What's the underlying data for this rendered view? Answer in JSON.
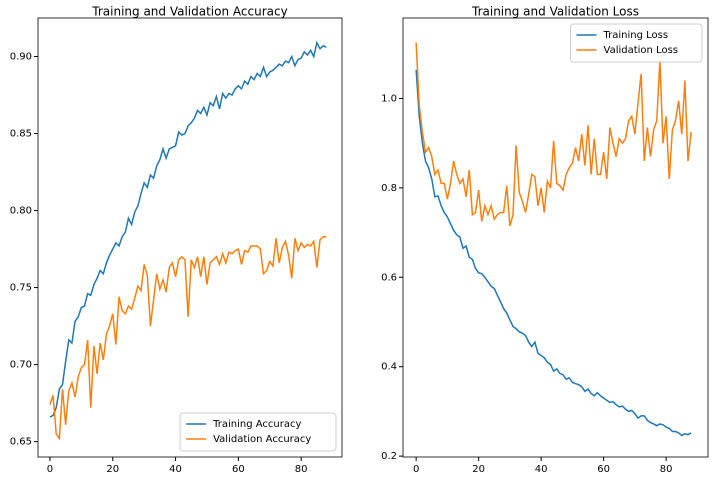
{
  "chart_data": [
    {
      "type": "line",
      "title": "Training and Validation Accuracy",
      "x": [
        0,
        1,
        2,
        3,
        4,
        5,
        6,
        7,
        8,
        9,
        10,
        11,
        12,
        13,
        14,
        15,
        16,
        17,
        18,
        19,
        20,
        21,
        22,
        23,
        24,
        25,
        26,
        27,
        28,
        29,
        30,
        31,
        32,
        33,
        34,
        35,
        36,
        37,
        38,
        39,
        40,
        41,
        42,
        43,
        44,
        45,
        46,
        47,
        48,
        49,
        50,
        51,
        52,
        53,
        54,
        55,
        56,
        57,
        58,
        59,
        60,
        61,
        62,
        63,
        64,
        65,
        66,
        67,
        68,
        69,
        70,
        71,
        72,
        73,
        74,
        75,
        76,
        77,
        78,
        79,
        80,
        81,
        82,
        83,
        84,
        85,
        86,
        87,
        88
      ],
      "series": [
        {
          "name": "Training Accuracy",
          "color": "#1f77b4",
          "values": [
            0.666,
            0.667,
            0.672,
            0.684,
            0.687,
            0.702,
            0.716,
            0.714,
            0.728,
            0.731,
            0.737,
            0.738,
            0.746,
            0.745,
            0.752,
            0.756,
            0.761,
            0.759,
            0.766,
            0.771,
            0.775,
            0.779,
            0.777,
            0.783,
            0.786,
            0.795,
            0.791,
            0.799,
            0.803,
            0.811,
            0.818,
            0.815,
            0.823,
            0.821,
            0.829,
            0.833,
            0.84,
            0.834,
            0.84,
            0.841,
            0.842,
            0.851,
            0.849,
            0.85,
            0.855,
            0.857,
            0.86,
            0.865,
            0.863,
            0.867,
            0.862,
            0.87,
            0.868,
            0.874,
            0.866,
            0.876,
            0.873,
            0.876,
            0.875,
            0.879,
            0.881,
            0.879,
            0.884,
            0.882,
            0.887,
            0.885,
            0.889,
            0.887,
            0.893,
            0.887,
            0.89,
            0.891,
            0.893,
            0.895,
            0.894,
            0.897,
            0.896,
            0.9,
            0.894,
            0.898,
            0.899,
            0.903,
            0.901,
            0.904,
            0.9,
            0.909,
            0.905,
            0.907,
            0.906
          ]
        },
        {
          "name": "Validation Accuracy",
          "color": "#ff7f0e",
          "values": [
            0.674,
            0.68,
            0.655,
            0.652,
            0.684,
            0.661,
            0.683,
            0.688,
            0.679,
            0.692,
            0.698,
            0.7,
            0.716,
            0.672,
            0.712,
            0.694,
            0.714,
            0.703,
            0.72,
            0.725,
            0.733,
            0.713,
            0.744,
            0.735,
            0.733,
            0.738,
            0.736,
            0.743,
            0.751,
            0.748,
            0.765,
            0.758,
            0.725,
            0.742,
            0.759,
            0.749,
            0.755,
            0.747,
            0.763,
            0.766,
            0.757,
            0.768,
            0.77,
            0.768,
            0.731,
            0.768,
            0.763,
            0.77,
            0.757,
            0.77,
            0.752,
            0.766,
            0.768,
            0.77,
            0.765,
            0.772,
            0.766,
            0.773,
            0.772,
            0.774,
            0.775,
            0.765,
            0.774,
            0.773,
            0.777,
            0.777,
            0.777,
            0.775,
            0.759,
            0.761,
            0.767,
            0.764,
            0.782,
            0.766,
            0.776,
            0.78,
            0.771,
            0.756,
            0.782,
            0.774,
            0.779,
            0.776,
            0.778,
            0.777,
            0.78,
            0.763,
            0.781,
            0.783,
            0.783
          ]
        }
      ],
      "xlim": [
        -3.8,
        93
      ],
      "ylim": [
        0.64,
        0.925
      ],
      "xticks": [
        0,
        20,
        40,
        60,
        80
      ],
      "yticks": [
        0.65,
        {
          "value": 0.7,
          "label": "0.70"
        },
        0.75,
        {
          "value": 0.8,
          "label": "0.80"
        },
        0.85,
        {
          "value": 0.9,
          "label": "0.90"
        }
      ],
      "legend": "lower right"
    },
    {
      "type": "line",
      "title": "Training and Validation Loss",
      "x": [
        0,
        1,
        2,
        3,
        4,
        5,
        6,
        7,
        8,
        9,
        10,
        11,
        12,
        13,
        14,
        15,
        16,
        17,
        18,
        19,
        20,
        21,
        22,
        23,
        24,
        25,
        26,
        27,
        28,
        29,
        30,
        31,
        32,
        33,
        34,
        35,
        36,
        37,
        38,
        39,
        40,
        41,
        42,
        43,
        44,
        45,
        46,
        47,
        48,
        49,
        50,
        51,
        52,
        53,
        54,
        55,
        56,
        57,
        58,
        59,
        60,
        61,
        62,
        63,
        64,
        65,
        66,
        67,
        68,
        69,
        70,
        71,
        72,
        73,
        74,
        75,
        76,
        77,
        78,
        79,
        80,
        81,
        82,
        83,
        84,
        85,
        86,
        87,
        88
      ],
      "series": [
        {
          "name": "Training Loss",
          "color": "#1f77b4",
          "values": [
            1.064,
            0.96,
            0.9,
            0.86,
            0.845,
            0.82,
            0.78,
            0.782,
            0.76,
            0.745,
            0.735,
            0.72,
            0.705,
            0.695,
            0.69,
            0.665,
            0.67,
            0.645,
            0.64,
            0.62,
            0.61,
            0.608,
            0.6,
            0.59,
            0.58,
            0.575,
            0.56,
            0.545,
            0.53,
            0.52,
            0.505,
            0.49,
            0.485,
            0.478,
            0.475,
            0.47,
            0.455,
            0.445,
            0.455,
            0.43,
            0.425,
            0.42,
            0.41,
            0.405,
            0.39,
            0.395,
            0.385,
            0.382,
            0.372,
            0.375,
            0.365,
            0.362,
            0.36,
            0.355,
            0.345,
            0.35,
            0.34,
            0.335,
            0.342,
            0.335,
            0.33,
            0.325,
            0.32,
            0.322,
            0.315,
            0.31,
            0.312,
            0.305,
            0.3,
            0.302,
            0.295,
            0.285,
            0.29,
            0.29,
            0.28,
            0.275,
            0.272,
            0.268,
            0.272,
            0.27,
            0.265,
            0.262,
            0.255,
            0.255,
            0.252,
            0.246,
            0.25,
            0.248,
            0.252
          ]
        },
        {
          "name": "Validation Loss",
          "color": "#ff7f0e",
          "values": [
            1.125,
            0.985,
            0.925,
            0.88,
            0.89,
            0.87,
            0.83,
            0.84,
            0.81,
            0.81,
            0.775,
            0.81,
            0.86,
            0.83,
            0.81,
            0.82,
            0.78,
            0.84,
            0.74,
            0.745,
            0.795,
            0.725,
            0.76,
            0.74,
            0.76,
            0.73,
            0.74,
            0.745,
            0.745,
            0.805,
            0.715,
            0.74,
            0.895,
            0.79,
            0.77,
            0.745,
            0.785,
            0.83,
            0.825,
            0.76,
            0.8,
            0.745,
            0.815,
            0.8,
            0.905,
            0.81,
            0.805,
            0.795,
            0.83,
            0.845,
            0.855,
            0.89,
            0.86,
            0.92,
            0.85,
            0.94,
            0.83,
            0.91,
            0.83,
            0.83,
            0.88,
            0.82,
            0.935,
            0.9,
            0.87,
            0.91,
            0.9,
            0.91,
            0.95,
            0.96,
            0.92,
            0.99,
            1.055,
            0.86,
            0.935,
            0.87,
            0.93,
            0.95,
            1.085,
            0.9,
            0.96,
            0.82,
            0.93,
            0.95,
            0.995,
            0.92,
            1.04,
            0.86,
            0.925
          ]
        }
      ],
      "xlim": [
        -4.2,
        93.4
      ],
      "ylim": [
        0.198,
        1.18
      ],
      "xticks": [
        0,
        20,
        40,
        60,
        80
      ],
      "yticks": [
        0.2,
        0.4,
        0.6,
        0.8,
        {
          "value": 1.0,
          "label": "1.0"
        }
      ],
      "legend": "upper right"
    }
  ]
}
